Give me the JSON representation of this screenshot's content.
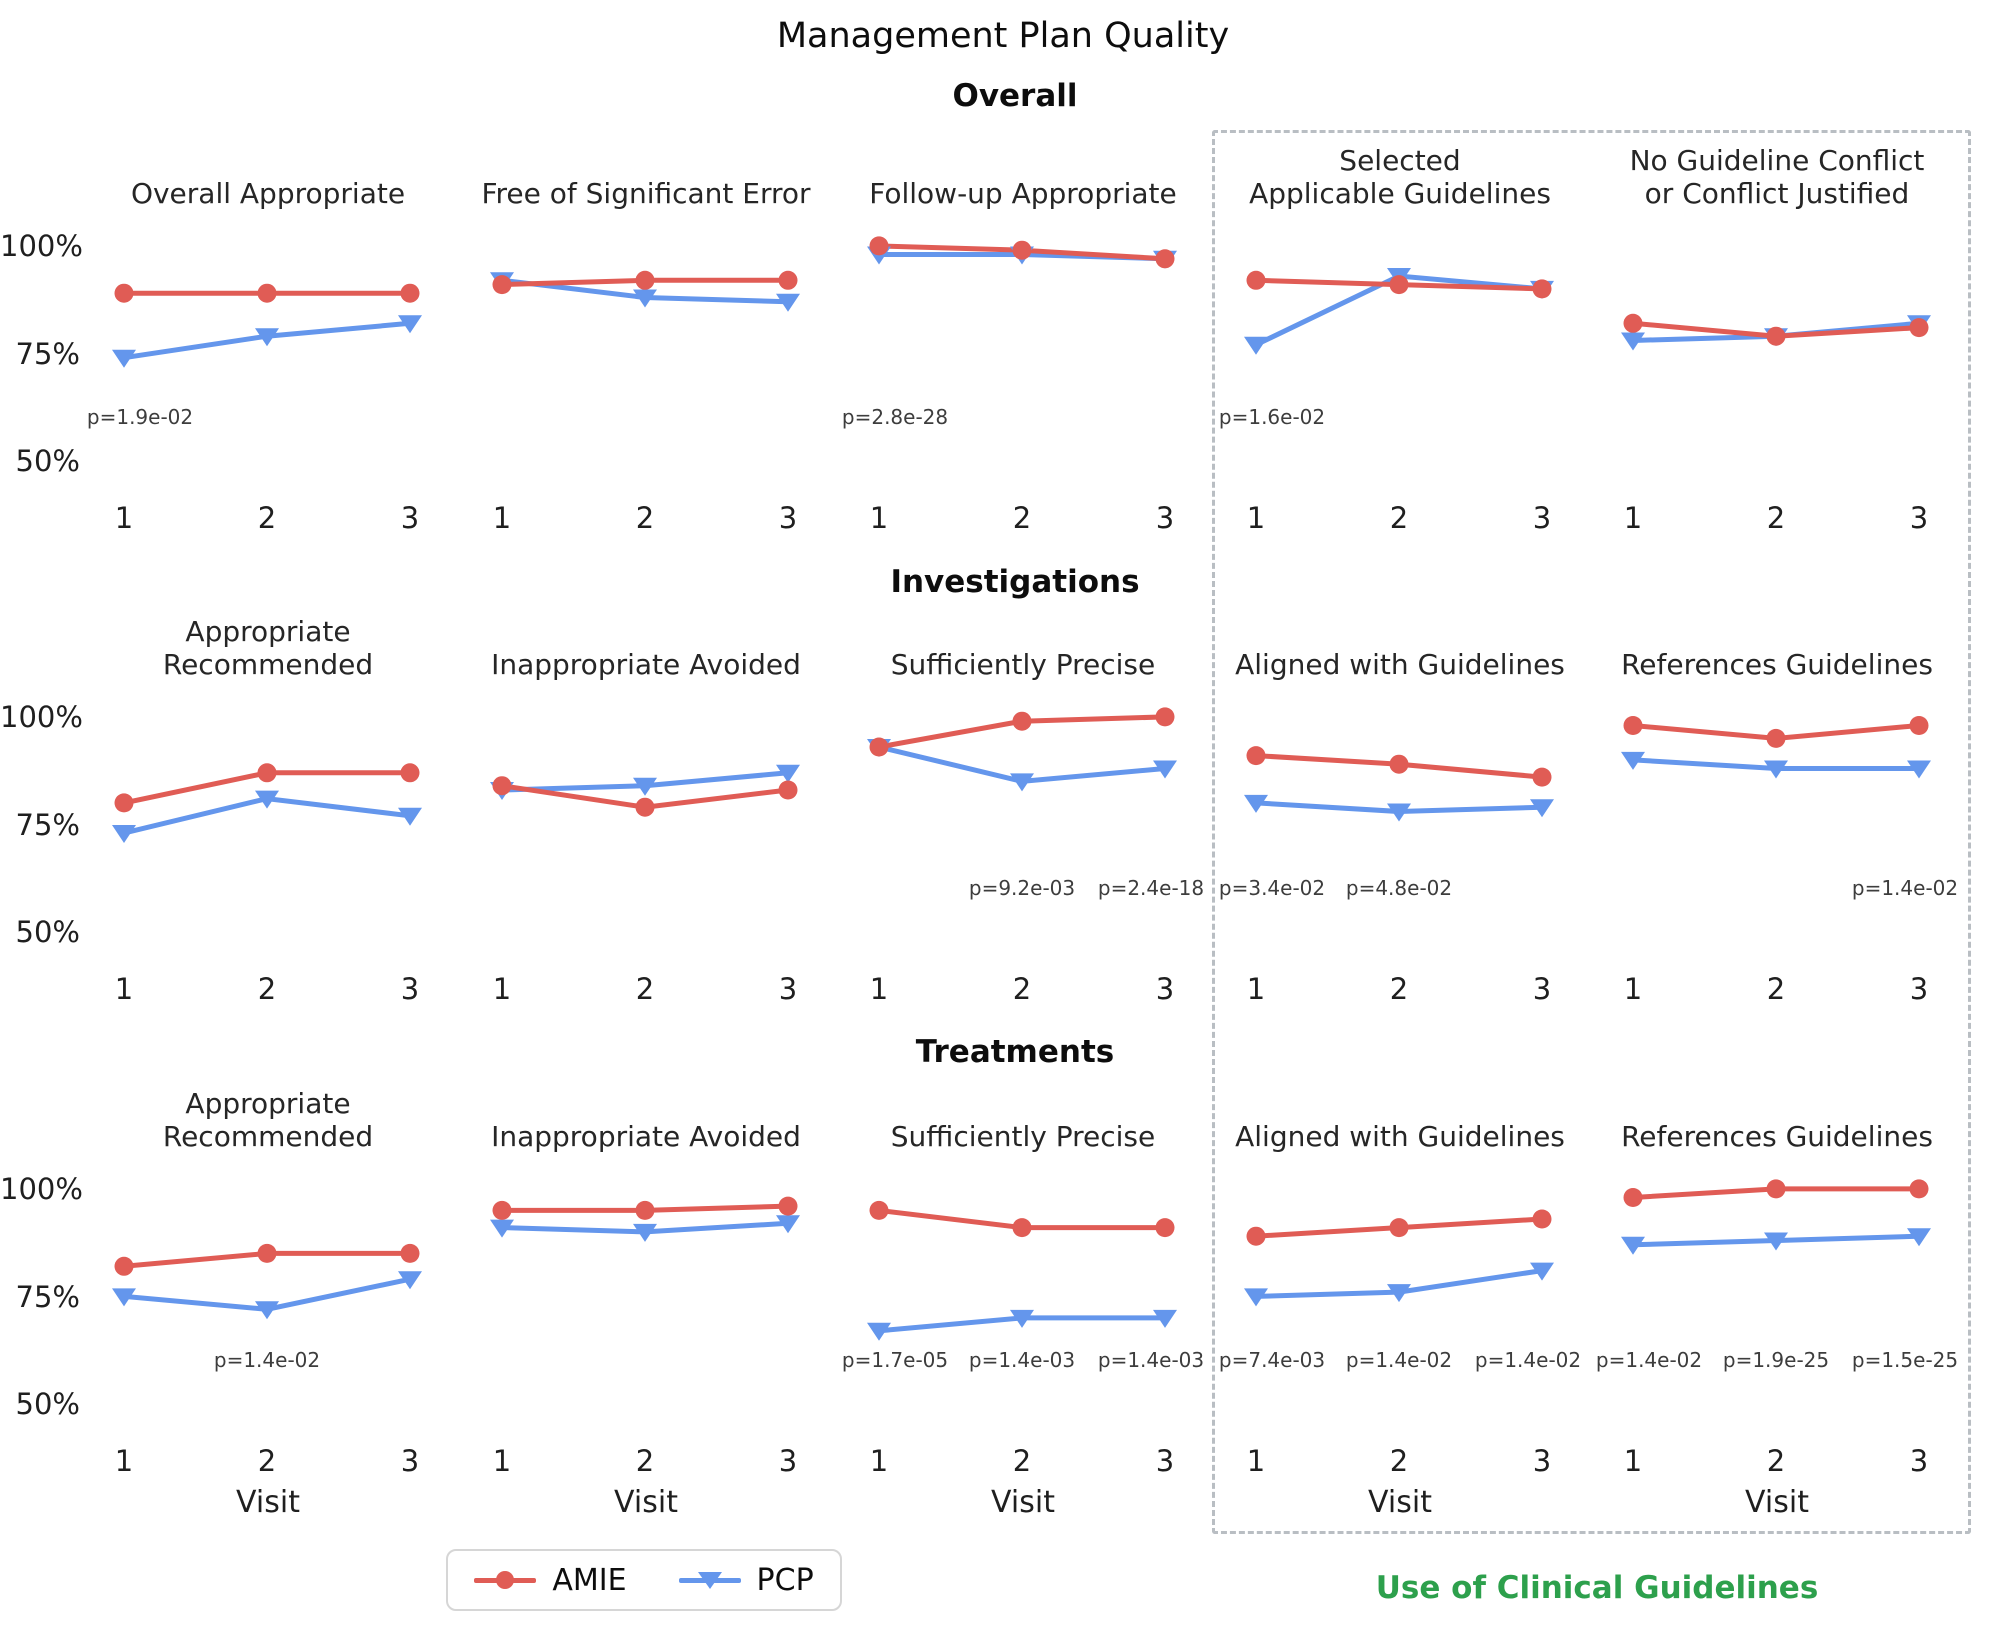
{
  "title": "Management Plan Quality",
  "guideline_box_label": "Use of Clinical Guidelines",
  "colors": {
    "amie": "#e05c55",
    "pcp": "#6496ec",
    "guideline_green": "#2da04c",
    "p_value_text": "#3d3d3d",
    "dashed_box": "#b9bec3"
  },
  "legend": [
    {
      "name": "AMIE",
      "marker": "circle"
    },
    {
      "name": "PCP",
      "marker": "triangle-down"
    }
  ],
  "axis": {
    "x_label": "Visit",
    "x_ticks": [
      "1",
      "2",
      "3"
    ],
    "y_ticks": [
      "100%",
      "75%",
      "50%"
    ]
  },
  "chart_data": {
    "type": "line",
    "x": [
      1,
      2,
      3
    ],
    "ylim": [
      50,
      105
    ],
    "legend_position": "bottom",
    "grid": false,
    "rows": [
      {
        "section": "Overall",
        "subplots": [
          {
            "title": "Overall Appropriate",
            "series": [
              {
                "name": "AMIE",
                "values": [
                  89,
                  89,
                  89
                ]
              },
              {
                "name": "PCP",
                "values": [
                  74,
                  79,
                  82
                ]
              }
            ],
            "p_values": [
              {
                "visit": 1,
                "label": "p=1.9e-02"
              }
            ]
          },
          {
            "title": "Free of Significant Error",
            "series": [
              {
                "name": "AMIE",
                "values": [
                  91,
                  92,
                  92
                ]
              },
              {
                "name": "PCP",
                "values": [
                  92,
                  88,
                  87
                ]
              }
            ],
            "p_values": []
          },
          {
            "title": "Follow-up Appropriate",
            "series": [
              {
                "name": "AMIE",
                "values": [
                  100,
                  99,
                  97
                ]
              },
              {
                "name": "PCP",
                "values": [
                  98,
                  98,
                  97
                ]
              }
            ],
            "p_values": [
              {
                "visit": 1,
                "label": "p=2.8e-28"
              }
            ]
          },
          {
            "title": "Selected\nApplicable Guidelines",
            "series": [
              {
                "name": "AMIE",
                "values": [
                  92,
                  91,
                  90
                ]
              },
              {
                "name": "PCP",
                "values": [
                  77,
                  93,
                  90
                ]
              }
            ],
            "p_values": [
              {
                "visit": 1,
                "label": "p=1.6e-02"
              }
            ]
          },
          {
            "title": "No Guideline Conflict\nor Conflict Justified",
            "series": [
              {
                "name": "AMIE",
                "values": [
                  82,
                  79,
                  81
                ]
              },
              {
                "name": "PCP",
                "values": [
                  78,
                  79,
                  82
                ]
              }
            ],
            "p_values": []
          }
        ]
      },
      {
        "section": "Investigations",
        "subplots": [
          {
            "title": "Appropriate Recommended",
            "series": [
              {
                "name": "AMIE",
                "values": [
                  80,
                  87,
                  87
                ]
              },
              {
                "name": "PCP",
                "values": [
                  73,
                  81,
                  77
                ]
              }
            ],
            "p_values": []
          },
          {
            "title": "Inappropriate Avoided",
            "series": [
              {
                "name": "AMIE",
                "values": [
                  84,
                  79,
                  83
                ]
              },
              {
                "name": "PCP",
                "values": [
                  83,
                  84,
                  87
                ]
              }
            ],
            "p_values": []
          },
          {
            "title": "Sufficiently Precise",
            "series": [
              {
                "name": "AMIE",
                "values": [
                  93,
                  99,
                  100
                ]
              },
              {
                "name": "PCP",
                "values": [
                  93,
                  85,
                  88
                ]
              }
            ],
            "p_values": [
              {
                "visit": 2,
                "label": "p=9.2e-03"
              },
              {
                "visit": 3,
                "label": "p=2.4e-18"
              }
            ]
          },
          {
            "title": "Aligned with Guidelines",
            "series": [
              {
                "name": "AMIE",
                "values": [
                  91,
                  89,
                  86
                ]
              },
              {
                "name": "PCP",
                "values": [
                  80,
                  78,
                  79
                ]
              }
            ],
            "p_values": [
              {
                "visit": 1,
                "label": "p=3.4e-02"
              },
              {
                "visit": 2,
                "label": "p=4.8e-02"
              }
            ]
          },
          {
            "title": "References Guidelines",
            "series": [
              {
                "name": "AMIE",
                "values": [
                  98,
                  95,
                  98
                ]
              },
              {
                "name": "PCP",
                "values": [
                  90,
                  88,
                  88
                ]
              }
            ],
            "p_values": [
              {
                "visit": 3,
                "label": "p=1.4e-02"
              }
            ]
          }
        ]
      },
      {
        "section": "Treatments",
        "subplots": [
          {
            "title": "Appropriate Recommended",
            "series": [
              {
                "name": "AMIE",
                "values": [
                  82,
                  85,
                  85
                ]
              },
              {
                "name": "PCP",
                "values": [
                  75,
                  72,
                  79
                ]
              }
            ],
            "p_values": [
              {
                "visit": 2,
                "label": "p=1.4e-02"
              }
            ]
          },
          {
            "title": "Inappropriate Avoided",
            "series": [
              {
                "name": "AMIE",
                "values": [
                  95,
                  95,
                  96
                ]
              },
              {
                "name": "PCP",
                "values": [
                  91,
                  90,
                  92
                ]
              }
            ],
            "p_values": []
          },
          {
            "title": "Sufficiently Precise",
            "series": [
              {
                "name": "AMIE",
                "values": [
                  95,
                  91,
                  91
                ]
              },
              {
                "name": "PCP",
                "values": [
                  67,
                  70,
                  70
                ]
              }
            ],
            "p_values": [
              {
                "visit": 1,
                "label": "p=1.7e-05"
              },
              {
                "visit": 2,
                "label": "p=1.4e-03"
              },
              {
                "visit": 3,
                "label": "p=1.4e-03"
              }
            ]
          },
          {
            "title": "Aligned with Guidelines",
            "series": [
              {
                "name": "AMIE",
                "values": [
                  89,
                  91,
                  93
                ]
              },
              {
                "name": "PCP",
                "values": [
                  75,
                  76,
                  81
                ]
              }
            ],
            "p_values": [
              {
                "visit": 1,
                "label": "p=7.4e-03"
              },
              {
                "visit": 2,
                "label": "p=1.4e-02"
              },
              {
                "visit": 3,
                "label": "p=1.4e-02"
              }
            ]
          },
          {
            "title": "References Guidelines",
            "series": [
              {
                "name": "AMIE",
                "values": [
                  98,
                  100,
                  100
                ]
              },
              {
                "name": "PCP",
                "values": [
                  87,
                  88,
                  89
                ]
              }
            ],
            "p_values": [
              {
                "visit": 1,
                "label": "p=1.4e-02"
              },
              {
                "visit": 2,
                "label": "p=1.9e-25"
              },
              {
                "visit": 3,
                "label": "p=1.5e-25"
              }
            ]
          }
        ]
      }
    ]
  }
}
